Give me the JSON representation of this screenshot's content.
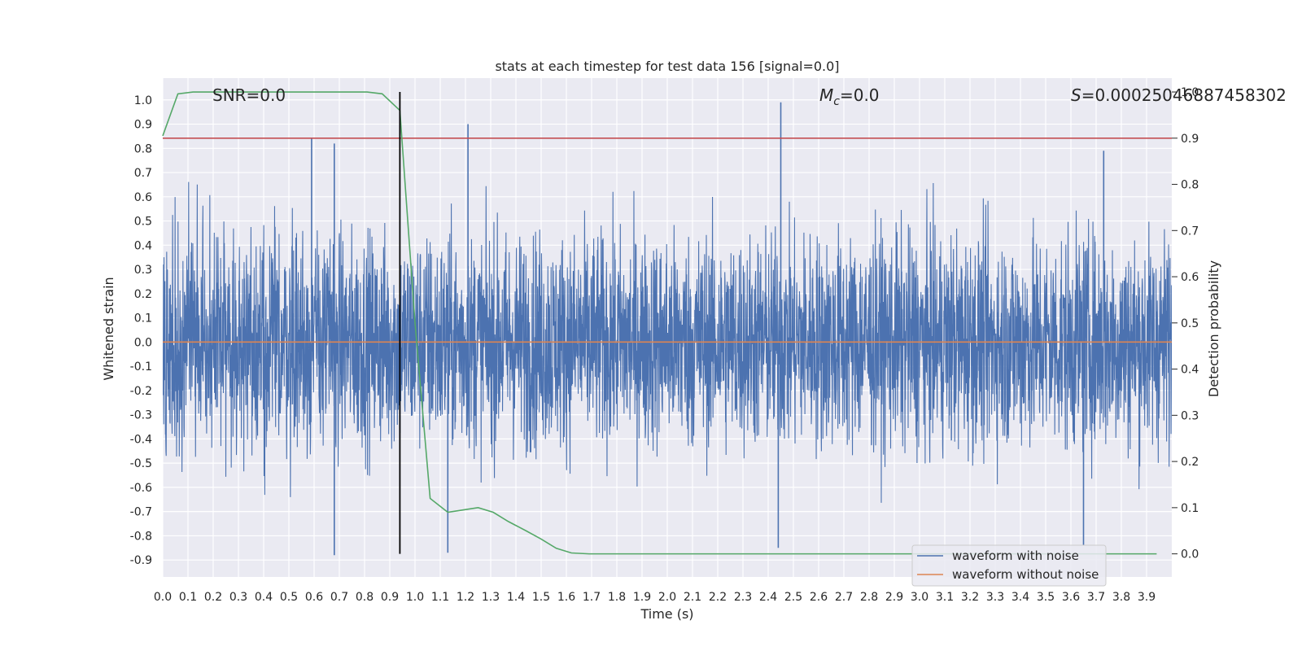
{
  "chart_data": {
    "type": "line",
    "title": "stats at each timestep for test data 156 [signal=0.0]",
    "xlabel": "Time (s)",
    "ylabel": "Whitened strain",
    "y2label": "Detection probability",
    "xlim": [
      0.0,
      4.0
    ],
    "ylim": [
      -0.97,
      1.09
    ],
    "y2lim": [
      -0.05,
      1.03
    ],
    "xticks": [
      "0.0",
      "0.1",
      "0.2",
      "0.3",
      "0.4",
      "0.5",
      "0.6",
      "0.7",
      "0.8",
      "0.9",
      "1.0",
      "1.1",
      "1.2",
      "1.3",
      "1.4",
      "1.5",
      "1.6",
      "1.7",
      "1.8",
      "1.9",
      "2.0",
      "2.1",
      "2.2",
      "2.3",
      "2.4",
      "2.5",
      "2.6",
      "2.7",
      "2.8",
      "2.9",
      "3.0",
      "3.1",
      "3.2",
      "3.3",
      "3.4",
      "3.5",
      "3.6",
      "3.7",
      "3.8",
      "3.9"
    ],
    "yticks": [
      "1.0",
      "0.9",
      "0.8",
      "0.7",
      "0.6",
      "0.5",
      "0.4",
      "0.3",
      "0.2",
      "0.1",
      "0.0",
      "-0.1",
      "-0.2",
      "-0.3",
      "-0.4",
      "-0.5",
      "-0.6",
      "-0.7",
      "-0.8",
      "-0.9"
    ],
    "y2ticks": [
      "1.0",
      "0.9",
      "0.8",
      "0.7",
      "0.6",
      "0.5",
      "0.4",
      "0.3",
      "0.2",
      "0.1",
      "0.0"
    ],
    "annotations": {
      "snr": "SNR=0.0",
      "mc_symbol": "M",
      "mc_sub": "c",
      "mc_value": "=0.0",
      "s_symbol": "S",
      "s_value": "=0.00025046887458302"
    },
    "series": [
      {
        "name": "waveform with noise",
        "axis": "left",
        "color": "#4c72b0",
        "description": "dense noisy whitened strain sampled across 0-4 s",
        "peak_points": [
          {
            "x": 0.59,
            "y": 0.84
          },
          {
            "x": 0.68,
            "y": 0.82
          },
          {
            "x": 1.21,
            "y": 0.9
          },
          {
            "x": 2.45,
            "y": 0.99
          },
          {
            "x": 3.73,
            "y": 0.79
          },
          {
            "x": 0.68,
            "y": -0.88
          },
          {
            "x": 2.44,
            "y": -0.85
          },
          {
            "x": 3.65,
            "y": -0.84
          },
          {
            "x": 1.13,
            "y": -0.87
          }
        ]
      },
      {
        "name": "waveform without noise",
        "axis": "left",
        "color": "#dd8452",
        "x": [
          0.0,
          4.0
        ],
        "y": [
          0.0,
          0.0
        ]
      },
      {
        "name": "detection probability",
        "axis": "right",
        "color": "#55a868",
        "x": [
          0.0,
          0.06,
          0.12,
          0.19,
          0.5,
          0.81,
          0.87,
          0.94,
          1.0,
          1.06,
          1.13,
          1.19,
          1.25,
          1.31,
          1.37,
          1.44,
          1.5,
          1.56,
          1.62,
          1.69,
          1.75,
          2.0,
          2.5,
          3.0,
          3.5,
          3.94
        ],
        "y": [
          0.905,
          0.996,
          1.0,
          1.0,
          1.0,
          1.0,
          0.996,
          0.96,
          0.5,
          0.12,
          0.09,
          0.095,
          0.1,
          0.09,
          0.07,
          0.05,
          0.032,
          0.012,
          0.002,
          0.0,
          0.0,
          0.0,
          0.0,
          0.0,
          0.0,
          0.0
        ]
      },
      {
        "name": "threshold",
        "axis": "right",
        "color": "#c44e52",
        "x": [
          0.0,
          4.0
        ],
        "y": [
          0.9,
          0.9
        ]
      }
    ],
    "vline": {
      "x": 0.94,
      "y2_from": 0.0,
      "y2_to": 1.0,
      "color": "#000000"
    },
    "legend": {
      "placement": "lower-right",
      "items": [
        "waveform with noise",
        "waveform without noise"
      ]
    },
    "grid": true
  }
}
